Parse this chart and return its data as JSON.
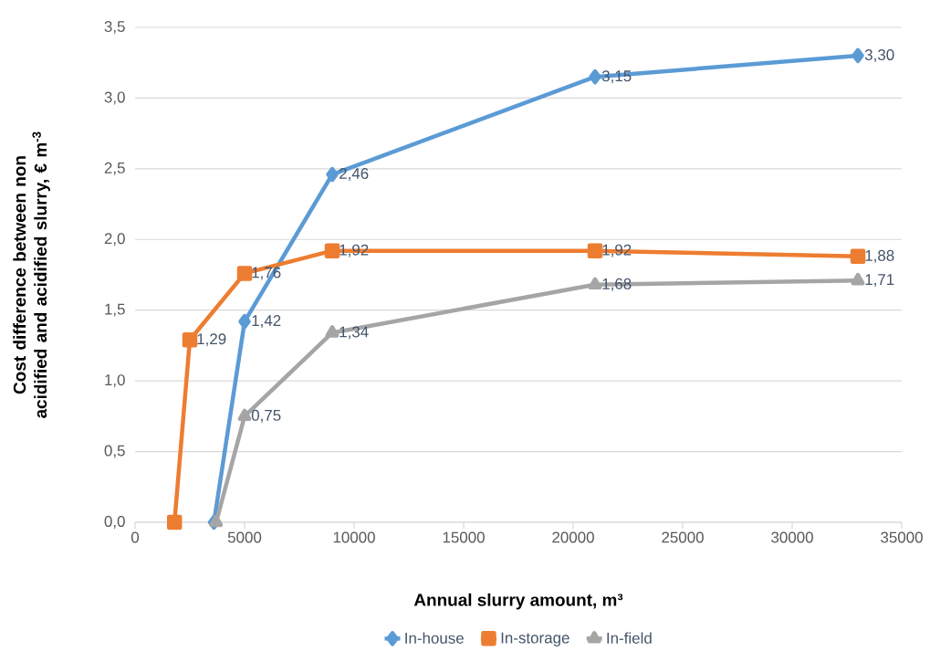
{
  "chart_data": {
    "type": "line",
    "xlabel": "Annual slurry amount, m³",
    "ylabel": "Cost difference between non acidified and acidified slurry, € m$^{-3}$",
    "xlim": [
      0,
      35000
    ],
    "xticks": [
      0,
      5000,
      10000,
      15000,
      20000,
      25000,
      30000,
      35000
    ],
    "ylim": [
      0,
      3.5
    ],
    "yticks": [
      {
        "value": 0,
        "label": "0,0"
      },
      {
        "value": 0.5,
        "label": "0,5"
      },
      {
        "value": 1,
        "label": "1,0"
      },
      {
        "value": 1.5,
        "label": "1,5"
      },
      {
        "value": 2,
        "label": "2,0"
      },
      {
        "value": 2.5,
        "label": "2,5"
      },
      {
        "value": 3,
        "label": "3,0"
      },
      {
        "value": 3.5,
        "label": "3,5"
      }
    ],
    "grid": "y",
    "legend": "bottom",
    "line_style": "solid",
    "series": [
      {
        "name": "In-house",
        "color": "#5b9bd5",
        "marker": "diamond",
        "x": [
          3600,
          5000,
          9000,
          21000,
          33000
        ],
        "values": [
          0,
          1.42,
          2.46,
          3.15,
          3.3
        ],
        "value_labels": [
          null,
          "1,42",
          "2,46",
          "3,15",
          "3,30"
        ]
      },
      {
        "name": "In-storage",
        "color": "#ed7d31",
        "marker": "square",
        "x": [
          1800,
          2500,
          5000,
          9000,
          21000,
          33000
        ],
        "values": [
          0,
          1.29,
          1.76,
          1.92,
          1.92,
          1.88
        ],
        "value_labels": [
          null,
          "1,29",
          "1,76",
          "1,92",
          "1,92",
          "1,88"
        ]
      },
      {
        "name": "In-field",
        "color": "#a5a5a5",
        "marker": "triangle",
        "x": [
          3700,
          5000,
          9000,
          21000,
          33000
        ],
        "values": [
          0,
          0.75,
          1.34,
          1.68,
          1.71
        ],
        "value_labels": [
          null,
          "0,75",
          "1,34",
          "1,68",
          "1,71"
        ]
      }
    ]
  }
}
